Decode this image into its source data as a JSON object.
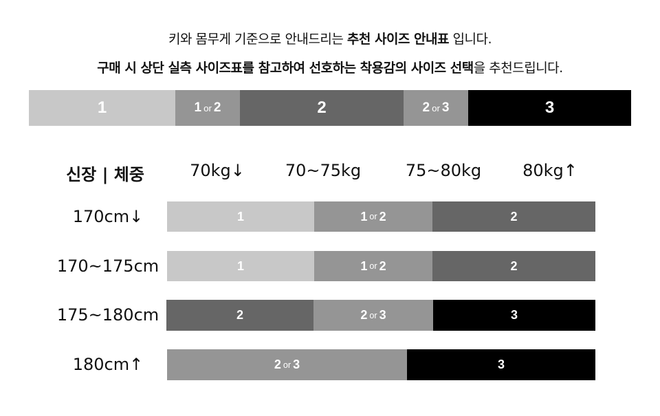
{
  "intro": {
    "line1": {
      "pre": "키와 몸무게 기준으로 안내드리는 ",
      "bold": "추천 사이즈 안내표",
      "post": " 입니다."
    },
    "line2": {
      "bold": "구매 시 상단 실측 사이즈표를 참고하여 선호하는 착용감의 사이즈 선택",
      "post": "을 추천드립니다."
    }
  },
  "legend": [
    {
      "a": "1"
    },
    {
      "a": "1",
      "or": "or",
      "b": "2"
    },
    {
      "a": "2"
    },
    {
      "a": "2",
      "or": "or",
      "b": "3"
    },
    {
      "a": "3"
    }
  ],
  "header": {
    "corner": "신장 | 체중",
    "cols": [
      "70kg↓",
      "70~75kg",
      "75~80kg",
      "80kg↑"
    ]
  },
  "rows": [
    {
      "label": "170cm↓",
      "cells": [
        {
          "a": "1"
        },
        {
          "a": "1",
          "or": "or",
          "b": "2"
        },
        {
          "a": "2"
        }
      ]
    },
    {
      "label": "170~175cm",
      "cells": [
        {
          "a": "1"
        },
        {
          "a": "1",
          "or": "or",
          "b": "2"
        },
        {
          "a": "2"
        }
      ]
    },
    {
      "label": "175~180cm",
      "cells": [
        {
          "a": "2"
        },
        {
          "a": "2",
          "or": "or",
          "b": "3"
        },
        {
          "a": "3"
        }
      ]
    },
    {
      "label": "180cm↑",
      "cells": [
        {
          "a": "2",
          "or": "or",
          "b": "3"
        },
        {
          "a": "3"
        }
      ]
    }
  ],
  "colors": {
    "size1": "#c8c8c8",
    "size1or2": "#959595",
    "size2": "#666666",
    "size2or3": "#959595",
    "size3": "#000000"
  }
}
